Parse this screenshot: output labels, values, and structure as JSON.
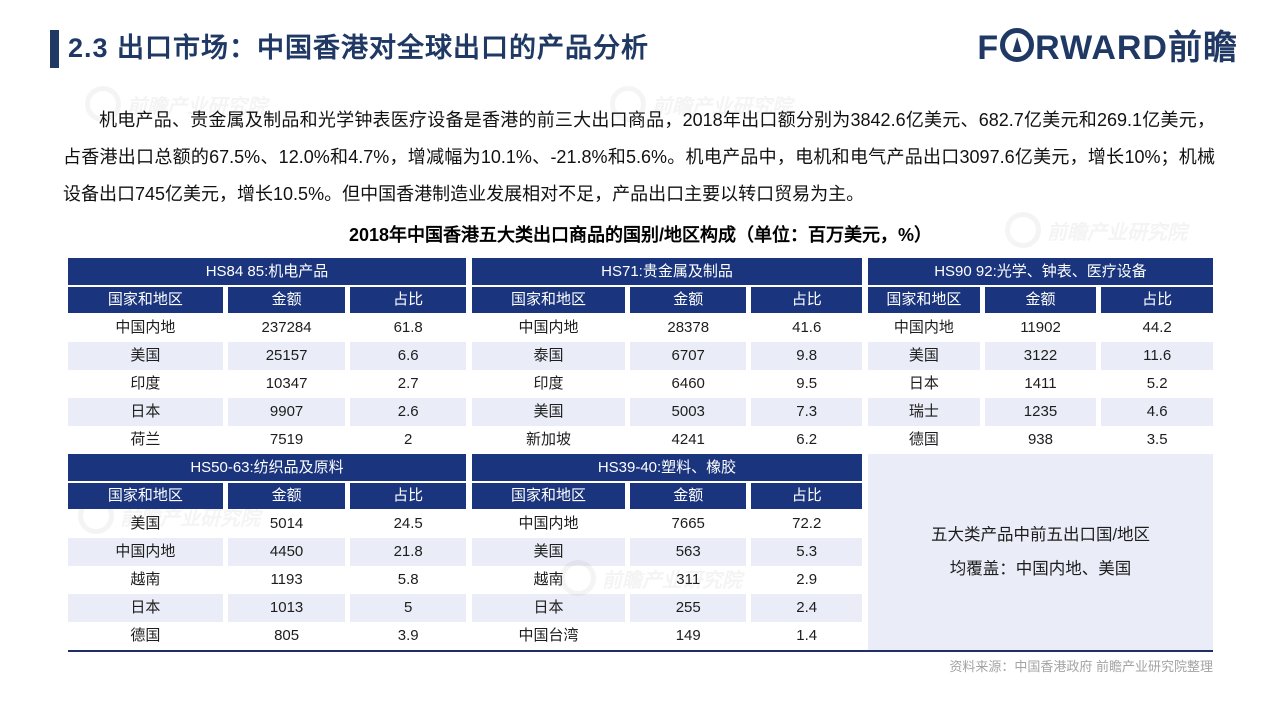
{
  "header": {
    "section_title": "2.3 出口市场：中国香港对全球出口的产品分析",
    "logo": {
      "name": "FORWARD前瞻",
      "prefix": "F",
      "suffix": "RWARD前瞻"
    }
  },
  "intro_paragraph": "机电产品、贵金属及制品和光学钟表医疗设备是香港的前三大出口商品，2018年出口额分别为3842.6亿美元、682.7亿美元和269.1亿美元，占香港出口总额的67.5%、12.0%和4.7%，增减幅为10.1%、-21.8%和5.6%。机电产品中，电机和电气产品出口3097.6亿美元，增长10%；机械设备出口745亿美元，增长10.5%。但中国香港制造业发展相对不足，产品出口主要以转口贸易为主。",
  "table_title": "2018年中国香港五大类出口商品的国别/地区构成（单位：百万美元，%）",
  "columns": [
    "国家和地区",
    "金额",
    "占比"
  ],
  "tables": [
    {
      "category": "HS84 85:机电产品",
      "rows": [
        [
          "中国内地",
          "237284",
          "61.8"
        ],
        [
          "美国",
          "25157",
          "6.6"
        ],
        [
          "印度",
          "10347",
          "2.7"
        ],
        [
          "日本",
          "9907",
          "2.6"
        ],
        [
          "荷兰",
          "7519",
          "2"
        ]
      ]
    },
    {
      "category": "HS71:贵金属及制品",
      "rows": [
        [
          "中国内地",
          "28378",
          "41.6"
        ],
        [
          "泰国",
          "6707",
          "9.8"
        ],
        [
          "印度",
          "6460",
          "9.5"
        ],
        [
          "美国",
          "5003",
          "7.3"
        ],
        [
          "新加坡",
          "4241",
          "6.2"
        ]
      ]
    },
    {
      "category": "HS90 92:光学、钟表、医疗设备",
      "rows": [
        [
          "中国内地",
          "11902",
          "44.2"
        ],
        [
          "美国",
          "3122",
          "11.6"
        ],
        [
          "日本",
          "1411",
          "5.2"
        ],
        [
          "瑞士",
          "1235",
          "4.6"
        ],
        [
          "德国",
          "938",
          "3.5"
        ]
      ]
    },
    {
      "category": "HS50-63:纺织品及原料",
      "rows": [
        [
          "美国",
          "5014",
          "24.5"
        ],
        [
          "中国内地",
          "4450",
          "21.8"
        ],
        [
          "越南",
          "1193",
          "5.8"
        ],
        [
          "日本",
          "1013",
          "5"
        ],
        [
          "德国",
          "805",
          "3.9"
        ]
      ]
    },
    {
      "category": "HS39-40:塑料、橡胶",
      "rows": [
        [
          "中国内地",
          "7665",
          "72.2"
        ],
        [
          "美国",
          "563",
          "5.3"
        ],
        [
          "越南",
          "311",
          "2.9"
        ],
        [
          "日本",
          "255",
          "2.4"
        ],
        [
          "中国台湾",
          "149",
          "1.4"
        ]
      ]
    }
  ],
  "note_box": {
    "line1": "五大类产品中前五出口国/地区",
    "line2": "均覆盖：中国内地、美国"
  },
  "source_note": "资料来源：中国香港政府  前瞻产业研究院整理",
  "watermark_text": "前瞻产业研究院",
  "colors": {
    "navy": "#1A347D",
    "navy_dark": "#1F3864",
    "lavender": "#EAEDF7",
    "source_gray": "#A3A3A3"
  }
}
